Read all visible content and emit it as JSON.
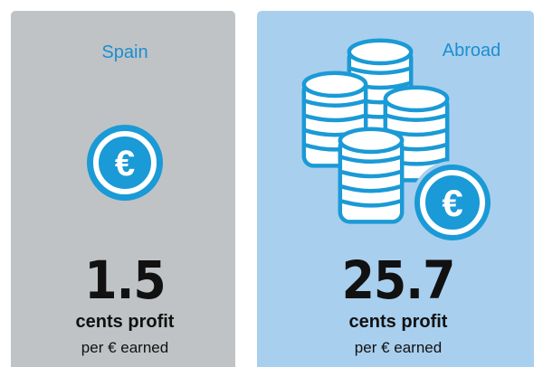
{
  "panels": [
    {
      "label": "Spain",
      "value": 1.5,
      "unit": "cents profit",
      "note": "per € earned"
    },
    {
      "label": "Abroad",
      "value": 25.7,
      "unit": "cents profit",
      "note": "per € earned"
    }
  ]
}
